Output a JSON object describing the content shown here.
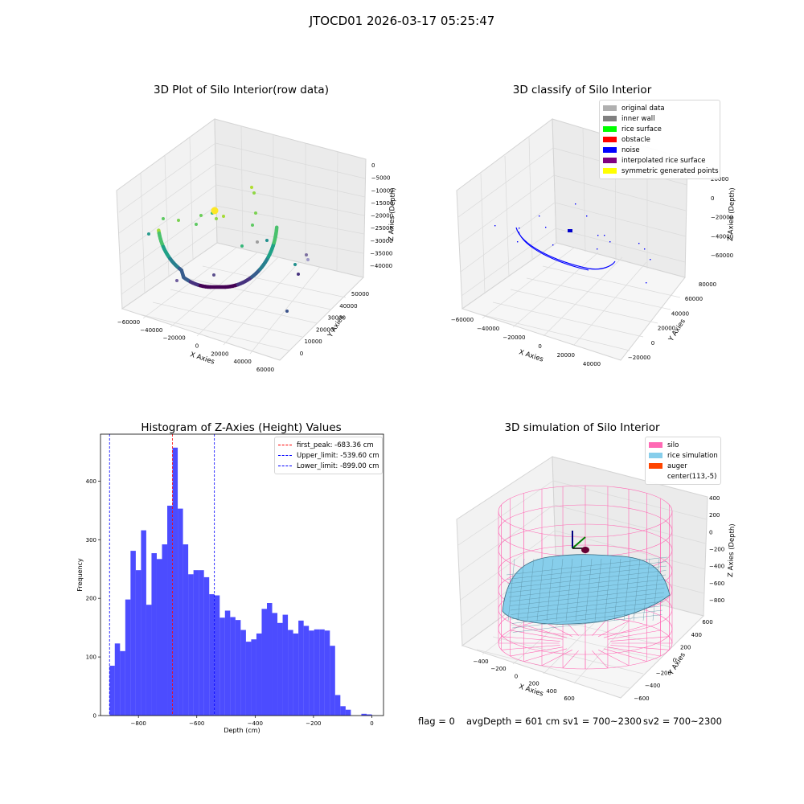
{
  "suptitle": "JTOCD01 2026-03-17 05:25:47",
  "chart_data": [
    {
      "type": "scatter",
      "title": "3D Plot of Silo Interior(row data)",
      "xlabel": "X Axies",
      "ylabel": "Y Axies",
      "zlabel": "Z Axies (Depth)",
      "x_ticks": [
        "−60000",
        "−40000",
        "−20000",
        "0",
        "20000",
        "40000",
        "60000"
      ],
      "y_ticks": [
        "0",
        "10000",
        "20000",
        "30000",
        "40000",
        "50000"
      ],
      "z_ticks": [
        "0",
        "−5000",
        "−10000",
        "−15000",
        "−20000",
        "−25000",
        "−30000",
        "−35000",
        "−40000"
      ],
      "colormap": "viridis"
    },
    {
      "type": "scatter",
      "title": "3D classify of Silo Interior",
      "xlabel": "X Axies",
      "ylabel": "Y Axies",
      "zlabel": "Z Axies (Depth)",
      "x_ticks": [
        "−60000",
        "−40000",
        "−20000",
        "0",
        "20000",
        "40000"
      ],
      "y_ticks": [
        "−20000",
        "0",
        "20000",
        "40000",
        "60000",
        "80000"
      ],
      "z_ticks": [
        "20000",
        "0",
        "−20000",
        "−40000",
        "−60000"
      ],
      "legend": [
        {
          "label": "original data",
          "color": "#b0b0b0"
        },
        {
          "label": "inner wall",
          "color": "#808080"
        },
        {
          "label": "rice surface",
          "color": "#00ff00"
        },
        {
          "label": "obstacle",
          "color": "#ff0000"
        },
        {
          "label": "noise",
          "color": "#0000ff"
        },
        {
          "label": "interpolated rice surface",
          "color": "#800080"
        },
        {
          "label": "symmetric generated points",
          "color": "#ffff00"
        }
      ]
    },
    {
      "type": "bar",
      "title": "Histogram of Z-Axies (Height) Values",
      "xlabel": "Depth (cm)",
      "ylabel": "Frequency",
      "xlim": [
        -930,
        40
      ],
      "ylim": [
        0,
        480
      ],
      "x_ticks": [
        -800,
        -600,
        -400,
        -200,
        0
      ],
      "x_tick_labels": [
        "−800",
        "−600",
        "−400",
        "−200",
        "0"
      ],
      "y_ticks": [
        0,
        100,
        200,
        300,
        400
      ],
      "bin_start": -899.0,
      "bin_width": 17.98,
      "values": [
        85,
        123,
        110,
        198,
        281,
        248,
        316,
        189,
        277,
        267,
        292,
        358,
        457,
        353,
        292,
        241,
        248,
        248,
        236,
        207,
        205,
        167,
        179,
        168,
        163,
        146,
        126,
        130,
        140,
        182,
        192,
        175,
        158,
        172,
        146,
        140,
        162,
        153,
        145,
        147,
        147,
        145,
        119,
        35,
        16,
        10,
        0,
        0,
        3,
        2
      ],
      "bar_color": "#0000ff",
      "lines": [
        {
          "label": "first_peak: -683.36 cm",
          "x": -683.36,
          "color": "#ff0000"
        },
        {
          "label": "Upper_limit: -539.60 cm",
          "x": -539.6,
          "color": "#0000ff"
        },
        {
          "label": "Lower_limit: -899.00 cm",
          "x": -899.0,
          "color": "#0000ff"
        }
      ]
    },
    {
      "type": "other",
      "title": "3D simulation of Silo Interior",
      "xlabel": "X Axies",
      "ylabel": "Y Axies",
      "zlabel": "Z Axies (Depth)",
      "x_ticks": [
        "−400",
        "−200",
        "0",
        "200",
        "400",
        "600"
      ],
      "y_ticks": [
        "−600",
        "−400",
        "−200",
        "0",
        "200",
        "400",
        "600"
      ],
      "z_ticks": [
        "400",
        "200",
        "0",
        "−200",
        "−400",
        "−600",
        "−800"
      ],
      "legend": [
        {
          "label": "silo",
          "color": "#ff69b4"
        },
        {
          "label": "rice simulation",
          "color": "#87ceeb"
        },
        {
          "label": "auger",
          "color": "#ff4500"
        },
        {
          "label": "center(113,-5)",
          "color": ""
        }
      ]
    }
  ],
  "footer": {
    "flag": "flag = 0",
    "avg": "avgDepth = 601 cm",
    "sv1": "sv1 = 700~2300",
    "sv2": "sv2 = 700~2300"
  }
}
